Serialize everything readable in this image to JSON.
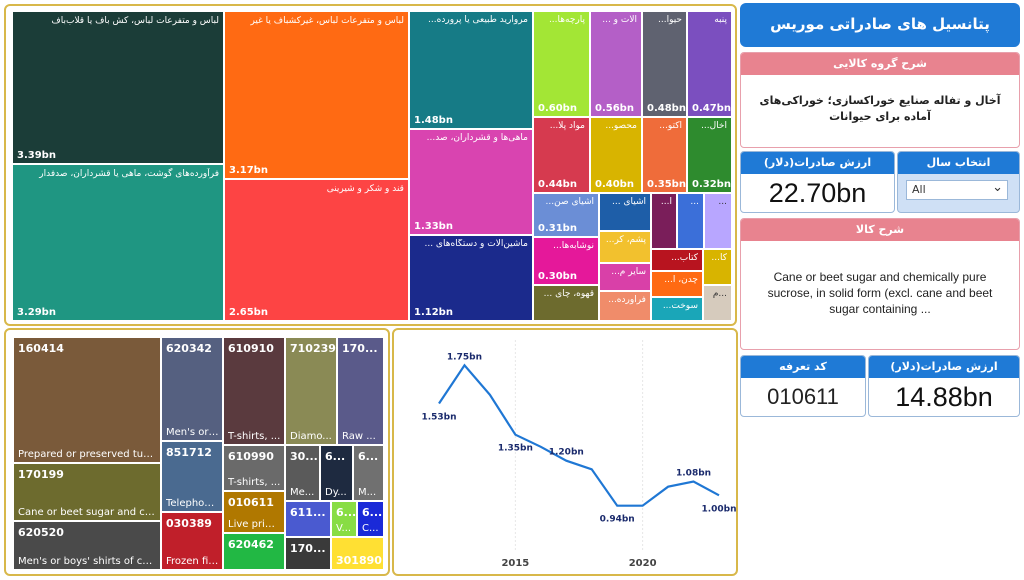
{
  "header": {
    "title": "پتانسیل های صادراتی موریس"
  },
  "group_desc": {
    "label": "شرح گروه کالایی",
    "text": "آخال و تفاله صنایع خوراکسازی؛ خوراکی‌های آماده برای حیوانات"
  },
  "export_total": {
    "label": "ارزش صادرات(دلار)",
    "value": "22.70bn"
  },
  "year_select": {
    "label": "انتخاب سال",
    "value": "All"
  },
  "product_desc": {
    "label": "شرح کالا",
    "text": "Cane or beet sugar and chemically pure sucrose, in solid form (excl. cane and beet sugar containing ..."
  },
  "tariff": {
    "label": "کد تعرفه",
    "value": "010611"
  },
  "export_product": {
    "label": "ارزش صادرات(دلار)",
    "value": "14.88bn"
  },
  "treemap1": {
    "tiles": [
      {
        "label": "لباس و متفرعات لباس، کش باف یا قلاب‌باف",
        "value": "3.39bn",
        "color": "#1b3d38"
      },
      {
        "label": "فرآورده‌های گوشت، ماهی یا قشرداران، صدفدار",
        "value": "3.29bn",
        "color": "#1f9682"
      },
      {
        "label": "لباس و متفرعات لباس، غیرکشباف یا غیر",
        "value": "3.17bn",
        "color": "#ff6a13"
      },
      {
        "label": "قند و شکر و شیرینی",
        "value": "2.65bn",
        "color": "#fd4444"
      },
      {
        "label": "مروارید طبیعی یا پرورده...",
        "value": "1.48bn",
        "color": "#167b86"
      },
      {
        "label": "ماهی‌ها و قشرداران، صد...",
        "value": "1.33bn",
        "color": "#d944b0"
      },
      {
        "label": "ماشین‌آلات و دستگاه‌های ...",
        "value": "1.12bn",
        "color": "#1b2a8c"
      },
      {
        "label": "پارچه‌ها...",
        "value": "0.60bn",
        "color": "#a3e635"
      },
      {
        "label": "آلات و ...",
        "value": "0.56bn",
        "color": "#b45fc7"
      },
      {
        "label": "حیوا...",
        "value": "0.48bn",
        "color": "#5f6270"
      },
      {
        "label": "پنبه",
        "value": "0.47bn",
        "color": "#7b4fbf"
      },
      {
        "label": "مواد پلا...",
        "value": "0.44bn",
        "color": "#d63a4f"
      },
      {
        "label": "محصو...",
        "value": "0.40bn",
        "color": "#d8b400"
      },
      {
        "label": "آکتو...",
        "value": "0.35bn",
        "color": "#ef6c3a"
      },
      {
        "label": "آخال...",
        "value": "0.32bn",
        "color": "#2e8b2e"
      },
      {
        "label": "اشیای صن...",
        "value": "0.31bn",
        "color": "#6b8ed6"
      },
      {
        "label": "نوشابه‌ها...",
        "value": "0.30bn",
        "color": "#e5189a"
      },
      {
        "label": "قهوه، چای ...",
        "value": "",
        "color": "#6d6b2e"
      },
      {
        "label": "اشیای ...",
        "value": "",
        "color": "#1e5ea8"
      },
      {
        "label": "پشم، کر...",
        "value": "",
        "color": "#f2c12e"
      },
      {
        "label": "سایر م...",
        "value": "",
        "color": "#d940a8"
      },
      {
        "label": "فرآورده...",
        "value": "",
        "color": "#f08c6a"
      },
      {
        "label": "آ...",
        "value": "",
        "color": "#7a1e5a"
      },
      {
        "label": "...",
        "value": "",
        "color": "#3b6fd9"
      },
      {
        "label": "...",
        "value": "",
        "color": "#b8a6ff"
      },
      {
        "label": "کتاب...",
        "value": "",
        "color": "#b8141f"
      },
      {
        "label": "چدن، آ...",
        "value": "",
        "color": "#ff6a13"
      },
      {
        "label": "سوخت...",
        "value": "",
        "color": "#1aa6b8"
      },
      {
        "label": "کا...",
        "value": "",
        "color": "#d8b400"
      },
      {
        "label": "...م",
        "value": "",
        "color": "#d6cbbd"
      }
    ]
  },
  "treemap2": {
    "tiles": [
      {
        "code": "160414",
        "desc": "Prepared or preserved tun...",
        "color": "#7a5a3a"
      },
      {
        "code": "170199",
        "desc": "Cane or beet sugar and ch...",
        "color": "#6d6b2e"
      },
      {
        "code": "620520",
        "desc": "Men's or boys' shirts of cott...",
        "color": "#4a4a4a"
      },
      {
        "code": "620342",
        "desc": "Men's or ...",
        "color": "#556080"
      },
      {
        "code": "851712",
        "desc": "Telephon...",
        "color": "#4a6a90"
      },
      {
        "code": "030389",
        "desc": "Frozen fis...",
        "color": "#c01f2a"
      },
      {
        "code": "610910",
        "desc": "T-shirts, ...",
        "color": "#5a3a3e"
      },
      {
        "code": "610990",
        "desc": "T-shirts, ...",
        "color": "#6a6a6a"
      },
      {
        "code": "010611",
        "desc": "Live prim...",
        "color": "#b07800"
      },
      {
        "code": "620462",
        "desc": "",
        "color": "#22b844"
      },
      {
        "code": "710239",
        "desc": "Diamo...",
        "color": "#8a8a55"
      },
      {
        "code": "170...",
        "desc": "Raw ...",
        "color": "#5a5a8a"
      },
      {
        "code": "30...",
        "desc": "Me...",
        "color": "#5a5a5a"
      },
      {
        "code": "6...",
        "desc": "Dy...",
        "color": "#1e2a40"
      },
      {
        "code": "6...",
        "desc": "M...",
        "color": "#707070"
      },
      {
        "code": "611...",
        "desc": "",
        "color": "#4a5ad0"
      },
      {
        "code": "6...",
        "desc": "V...",
        "color": "#88dd44"
      },
      {
        "code": "6...",
        "desc": "C...",
        "color": "#1a2ad8"
      },
      {
        "code": "170...",
        "desc": "",
        "color": "#3a3a3a"
      },
      {
        "code": "301890",
        "desc": "",
        "color": "#ffe033"
      }
    ]
  },
  "chart_data": {
    "type": "line",
    "x": [
      2012,
      2013,
      2014,
      2015,
      2016,
      2017,
      2018,
      2019,
      2020,
      2021,
      2022,
      2023
    ],
    "values": [
      1.53,
      1.75,
      1.58,
      1.35,
      1.28,
      1.2,
      1.15,
      0.94,
      0.94,
      1.05,
      1.08,
      1.0
    ],
    "data_labels": [
      "1.53bn",
      "1.75bn",
      "",
      "1.35bn",
      "",
      "1.20bn",
      "",
      "0.94bn",
      "",
      "",
      "1.08bn",
      "1.00bn"
    ],
    "x_ticks": [
      "2015",
      "2020"
    ],
    "title": "",
    "xlabel": "",
    "ylabel": "",
    "ylim": [
      0.8,
      1.85
    ],
    "color": "#1f77d4",
    "grid": "vertical"
  }
}
